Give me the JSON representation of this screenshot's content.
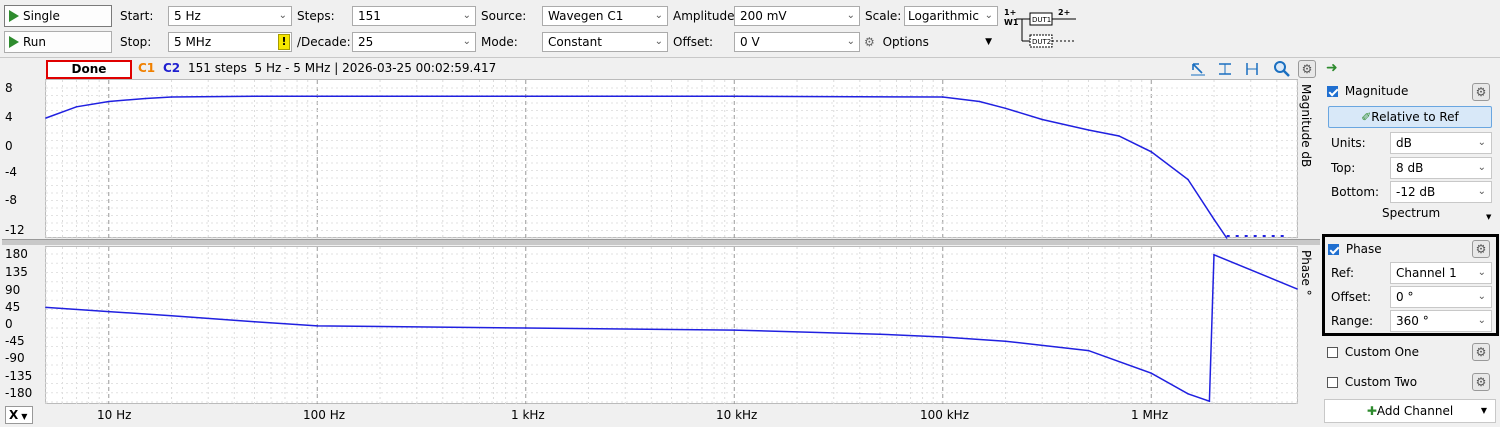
{
  "toolbar": {
    "single_label": "Single",
    "run_label": "Run",
    "start_label": "Start:",
    "start_value": "5 Hz",
    "stop_label": "Stop:",
    "stop_value": "5 MHz",
    "warning_mark": "!",
    "steps_label": "Steps:",
    "steps_value": "151",
    "decade_label": "/Decade:",
    "decade_value": "25",
    "source_label": "Source:",
    "source_value": "Wavegen C1",
    "mode_label": "Mode:",
    "mode_value": "Constant",
    "amplitude_label": "Amplitude:",
    "amplitude_value": "200 mV",
    "offset_label": "Offset:",
    "offset_value": "0 V",
    "scale_label": "Scale:",
    "scale_value": "Logarithmic",
    "options_label": "Options",
    "diagram": {
      "in1": "1+",
      "w1": "W1",
      "dut1": "DUT1",
      "out2": "2+",
      "dut2": "DUT2"
    }
  },
  "status": {
    "state": "Done",
    "c1": "C1",
    "c2": "C2",
    "info": "151 steps  5 Hz - 5 MHz | 2026-03-25 00:02:59.417"
  },
  "magnitude_plot": {
    "title": "Magnitude  dB",
    "y_ticks": [
      "8",
      "4",
      "0",
      "-4",
      "-8",
      "-12"
    ]
  },
  "phase_plot": {
    "title": "Phase  °",
    "y_ticks": [
      "180",
      "135",
      "90",
      "45",
      "0",
      "-45",
      "-90",
      "-135",
      "-180"
    ]
  },
  "x_axis": {
    "selector": "X",
    "ticks": [
      "10 Hz",
      "100 Hz",
      "1 kHz",
      "10 kHz",
      "100 kHz",
      "1 MHz"
    ]
  },
  "panel": {
    "magnitude": {
      "label": "Magnitude",
      "relative_button": "Relative to Ref",
      "units_label": "Units:",
      "units_value": "dB",
      "top_label": "Top:",
      "top_value": "8 dB",
      "bottom_label": "Bottom:",
      "bottom_value": "-12 dB",
      "spectrum_label": "Spectrum"
    },
    "phase": {
      "label": "Phase",
      "ref_label": "Ref:",
      "ref_value": "Channel 1",
      "offset_label": "Offset:",
      "offset_value": "0 °",
      "range_label": "Range:",
      "range_value": "360 °"
    },
    "custom_one": "Custom One",
    "custom_two": "Custom Two",
    "add_channel": "Add Channel"
  },
  "colors": {
    "trace": "#2020e0",
    "c1": "#f08000",
    "c2": "#2020d0",
    "done_border": "#e00000",
    "accent": "#1f6fd0"
  },
  "chart_data": [
    {
      "type": "line",
      "title": "",
      "ylabel": "Magnitude  dB",
      "xscale": "log",
      "x_units": "Hz",
      "xlim": [
        5,
        5000000
      ],
      "ylim": [
        -12,
        8
      ],
      "series": [
        {
          "x": [
            5,
            7,
            10,
            15,
            20,
            50,
            100,
            1000,
            10000,
            100000,
            150000,
            200000,
            300000,
            500000,
            700000,
            1000000,
            1500000,
            2000000,
            2300000
          ],
          "y": [
            4,
            5.5,
            6.2,
            6.6,
            6.8,
            6.9,
            6.9,
            6.9,
            6.9,
            6.8,
            6.2,
            5.3,
            3.8,
            2.4,
            1.6,
            -0.5,
            -4.2,
            -9.5,
            -12
          ]
        }
      ]
    },
    {
      "type": "line",
      "title": "",
      "ylabel": "Phase  °",
      "xscale": "log",
      "x_units": "Hz",
      "xlim": [
        5,
        5000000
      ],
      "ylim": [
        -180,
        180
      ],
      "series": [
        {
          "x": [
            5,
            10,
            20,
            50,
            100,
            1000,
            10000,
            50000,
            100000,
            200000,
            500000,
            1000000,
            1500000,
            1900000,
            2000000,
            5000000
          ],
          "y": [
            50,
            40,
            30,
            15,
            5,
            0,
            -5,
            -15,
            -22,
            -32,
            -55,
            -110,
            -160,
            -178,
            178,
            95
          ]
        }
      ]
    }
  ]
}
